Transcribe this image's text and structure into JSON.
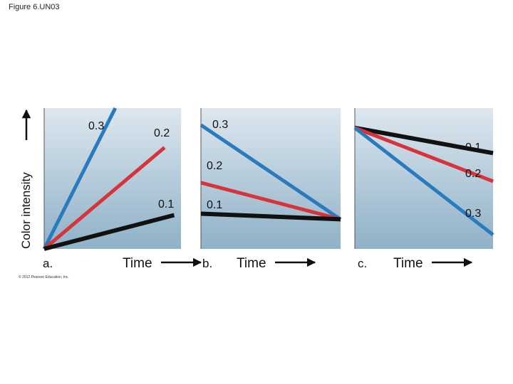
{
  "figure_label": "Figure 6.UN03",
  "copyright": "© 2012 Pearson Education, Inc.",
  "y_axis_label": "Color intensity",
  "colors": {
    "0.1": "#111111",
    "0.2": "#d6333b",
    "0.3": "#2a7bbd"
  },
  "chart_data": [
    {
      "type": "line",
      "panel": "a.",
      "xlabel": "Time",
      "ylabel": "Color intensity",
      "xlim": [
        0,
        1
      ],
      "ylim": [
        0,
        1
      ],
      "grid": false,
      "series": [
        {
          "name": "0.3",
          "x": [
            0,
            0.52
          ],
          "y": [
            0,
            1.0
          ]
        },
        {
          "name": "0.2",
          "x": [
            0,
            0.88
          ],
          "y": [
            0,
            0.72
          ]
        },
        {
          "name": "0.1",
          "x": [
            0,
            0.95
          ],
          "y": [
            0,
            0.24
          ]
        }
      ]
    },
    {
      "type": "line",
      "panel": "b.",
      "xlabel": "Time",
      "xlim": [
        0,
        1
      ],
      "ylim": [
        0,
        1
      ],
      "grid": false,
      "series": [
        {
          "name": "0.3",
          "x": [
            0,
            1
          ],
          "y": [
            0.88,
            0.21
          ]
        },
        {
          "name": "0.2",
          "x": [
            0,
            1
          ],
          "y": [
            0.47,
            0.21
          ]
        },
        {
          "name": "0.1",
          "x": [
            0,
            1
          ],
          "y": [
            0.25,
            0.21
          ]
        }
      ]
    },
    {
      "type": "line",
      "panel": "c.",
      "xlabel": "Time",
      "xlim": [
        0,
        1
      ],
      "ylim": [
        0,
        1
      ],
      "grid": false,
      "series": [
        {
          "name": "0.1",
          "x": [
            0,
            1
          ],
          "y": [
            0.86,
            0.68
          ]
        },
        {
          "name": "0.2",
          "x": [
            0,
            1
          ],
          "y": [
            0.86,
            0.48
          ]
        },
        {
          "name": "0.3",
          "x": [
            0,
            1
          ],
          "y": [
            0.86,
            0.1
          ]
        }
      ]
    }
  ]
}
